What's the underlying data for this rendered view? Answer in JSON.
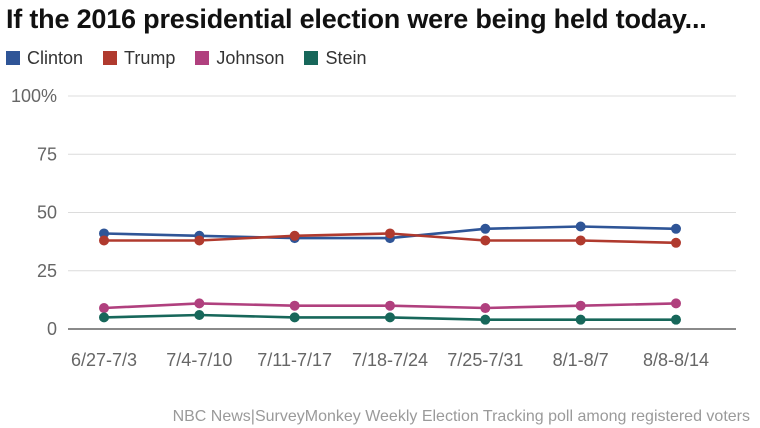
{
  "title": "If the 2016 presidential election were being held today...",
  "source": "NBC News|SurveyMonkey Weekly Election Tracking poll among registered voters",
  "chart_data": {
    "type": "line",
    "title": "If the 2016 presidential election were being held today...",
    "categories": [
      "6/27-7/3",
      "7/4-7/10",
      "7/11-7/17",
      "7/18-7/24",
      "7/25-7/31",
      "8/1-8/7",
      "8/8-8/14"
    ],
    "series": [
      {
        "name": "Clinton",
        "color": "#2f5597",
        "values": [
          41,
          40,
          39,
          39,
          43,
          44,
          43
        ]
      },
      {
        "name": "Trump",
        "color": "#b03a2e",
        "values": [
          38,
          38,
          40,
          41,
          38,
          38,
          37
        ]
      },
      {
        "name": "Johnson",
        "color": "#b0407e",
        "values": [
          9,
          11,
          10,
          10,
          9,
          10,
          11
        ]
      },
      {
        "name": "Stein",
        "color": "#17675a",
        "values": [
          5,
          6,
          5,
          5,
          4,
          4,
          4
        ]
      }
    ],
    "y_ticks": [
      "0",
      "25",
      "50",
      "75",
      "100%"
    ],
    "ylim": [
      0,
      100
    ],
    "grid": true,
    "legend_position": "top-left"
  }
}
